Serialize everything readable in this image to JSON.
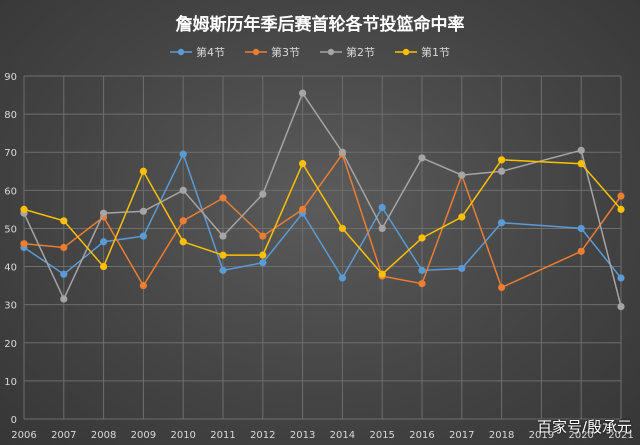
{
  "watermark": "百家号/殷承元",
  "chart_data": {
    "type": "line",
    "title": "詹姆斯历年季后赛首轮各节投篮命中率",
    "x": [
      2006,
      2007,
      2008,
      2009,
      2010,
      2011,
      2012,
      2013,
      2014,
      2015,
      2016,
      2017,
      2018,
      2019,
      2020,
      2021
    ],
    "x_tick_labels": [
      "2006",
      "2007",
      "2008",
      "2009",
      "2010",
      "2011",
      "2012",
      "2013",
      "2014",
      "2015",
      "2016",
      "2017",
      "2018",
      "2019",
      "2020",
      "2021"
    ],
    "ylim": [
      0,
      90
    ],
    "y_ticks": [
      0,
      10,
      20,
      30,
      40,
      50,
      60,
      70,
      80,
      90
    ],
    "grid": true,
    "legend_position": "top",
    "series": [
      {
        "name": "第4节",
        "color": "#5b9bd5",
        "points": [
          [
            2006,
            45
          ],
          [
            2007,
            38
          ],
          [
            2008,
            46.5
          ],
          [
            2009,
            48
          ],
          [
            2010,
            69.5
          ],
          [
            2011,
            39
          ],
          [
            2012,
            41
          ],
          [
            2013,
            54
          ],
          [
            2014,
            37
          ],
          [
            2015,
            55.5
          ],
          [
            2016,
            39
          ],
          [
            2017,
            39.5
          ],
          [
            2018,
            51.5
          ],
          [
            2020,
            50
          ],
          [
            2021,
            37
          ]
        ]
      },
      {
        "name": "第3节",
        "color": "#ed7d31",
        "points": [
          [
            2006,
            46
          ],
          [
            2007,
            45
          ],
          [
            2008,
            53
          ],
          [
            2009,
            35
          ],
          [
            2010,
            52
          ],
          [
            2011,
            58
          ],
          [
            2012,
            48
          ],
          [
            2013,
            55
          ],
          [
            2014,
            69.5
          ],
          [
            2015,
            37.5
          ],
          [
            2016,
            35.5
          ],
          [
            2017,
            64
          ],
          [
            2018,
            34.5
          ],
          [
            2020,
            44
          ],
          [
            2021,
            58.5
          ]
        ]
      },
      {
        "name": "第2节",
        "color": "#a5a5a5",
        "points": [
          [
            2006,
            54
          ],
          [
            2007,
            31.5
          ],
          [
            2008,
            54
          ],
          [
            2009,
            54.5
          ],
          [
            2010,
            60
          ],
          [
            2011,
            48
          ],
          [
            2012,
            59
          ],
          [
            2013,
            85.5
          ],
          [
            2014,
            70
          ],
          [
            2015,
            50
          ],
          [
            2016,
            68.5
          ],
          [
            2017,
            64
          ],
          [
            2018,
            65
          ],
          [
            2020,
            70.5
          ],
          [
            2021,
            29.5
          ]
        ]
      },
      {
        "name": "第1节",
        "color": "#ffc000",
        "points": [
          [
            2006,
            55
          ],
          [
            2007,
            52
          ],
          [
            2008,
            40
          ],
          [
            2009,
            65
          ],
          [
            2010,
            46.5
          ],
          [
            2011,
            43
          ],
          [
            2012,
            43
          ],
          [
            2013,
            67
          ],
          [
            2014,
            50
          ],
          [
            2015,
            38
          ],
          [
            2016,
            47.5
          ],
          [
            2017,
            53
          ],
          [
            2018,
            68
          ],
          [
            2020,
            67
          ],
          [
            2021,
            55
          ]
        ]
      }
    ]
  }
}
